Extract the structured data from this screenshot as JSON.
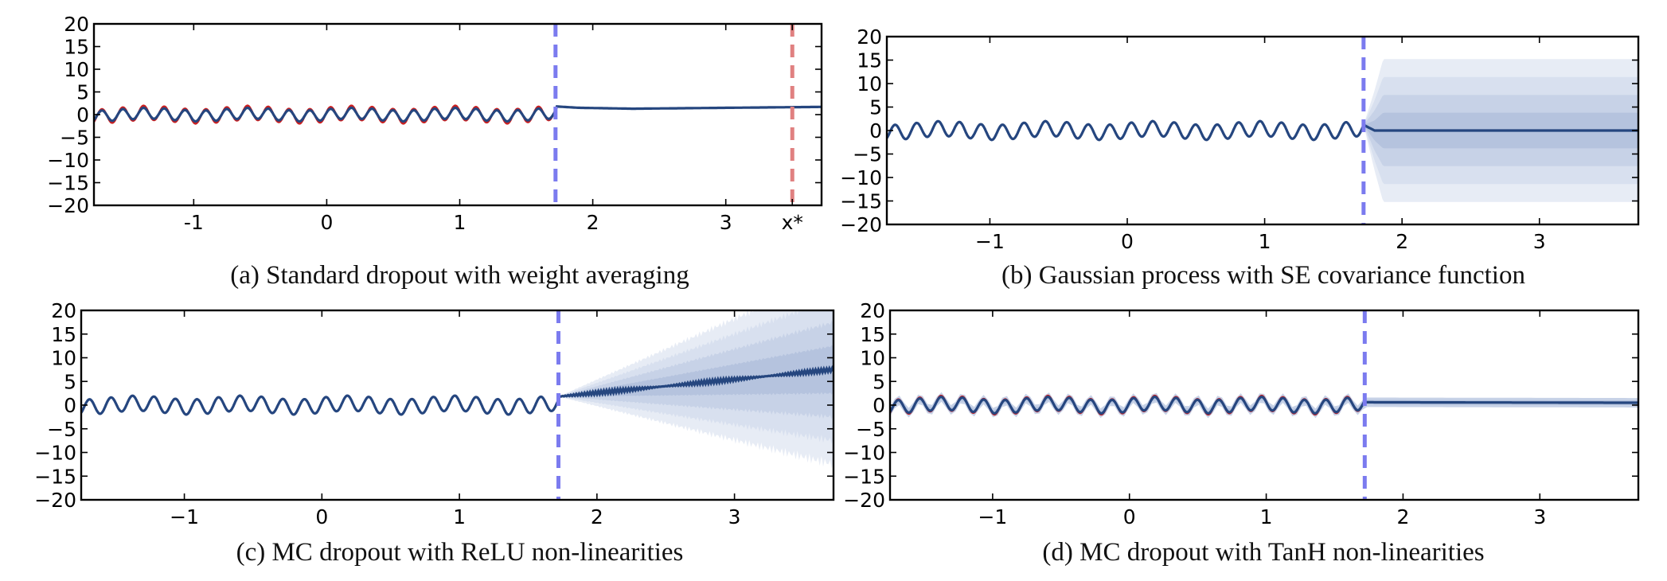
{
  "chart_data": [
    {
      "id": "a",
      "type": "line",
      "caption": "(a) Standard dropout with weight averaging",
      "xlim": [
        -1.75,
        3.72
      ],
      "ylim": [
        -20,
        20
      ],
      "xticks": [
        -1,
        0,
        1,
        2,
        3
      ],
      "xtick_labels": [
        "-1",
        "0",
        "1",
        "2",
        "3"
      ],
      "extra_xticks": [
        {
          "value": 3.5,
          "label": "x*"
        }
      ],
      "yticks": [
        20,
        15,
        10,
        5,
        0,
        -5,
        -10,
        -15,
        -20
      ],
      "ytick_labels": [
        "20",
        "15",
        "10",
        "5",
        "0",
        "−5",
        "−10",
        "−15",
        "−20"
      ],
      "vlines": [
        {
          "x": 1.72,
          "color": "#7b7bef"
        },
        {
          "x": 3.5,
          "color": "#e08080"
        }
      ],
      "observed": {
        "x_range": [
          -1.75,
          1.72
        ],
        "color": "#cc1f1f",
        "amplitude": 1.6
      },
      "prediction": {
        "color": "#25467f",
        "amplitude": 1.2,
        "extrapolation": [
          [
            1.72,
            1.8
          ],
          [
            1.9,
            1.5
          ],
          [
            2.3,
            1.3
          ],
          [
            3.0,
            1.5
          ],
          [
            3.72,
            1.7
          ]
        ]
      },
      "bands": []
    },
    {
      "id": "b",
      "type": "line",
      "caption": "(b) Gaussian process with SE covariance function",
      "xlim": [
        -1.75,
        3.72
      ],
      "ylim": [
        -20,
        20
      ],
      "xticks": [
        -1,
        0,
        1,
        2,
        3
      ],
      "xtick_labels": [
        "−1",
        "0",
        "1",
        "2",
        "3"
      ],
      "extra_xticks": [],
      "yticks": [
        20,
        15,
        10,
        5,
        0,
        -5,
        -10,
        -15,
        -20
      ],
      "ytick_labels": [
        "20",
        "15",
        "10",
        "5",
        "0",
        "−5",
        "−10",
        "−15",
        "−20"
      ],
      "vlines": [
        {
          "x": 1.72,
          "color": "#7b7bef"
        }
      ],
      "observed": {
        "x_range": [
          -1.75,
          1.72
        ],
        "color": "#cc1f1f",
        "amplitude": 1.6
      },
      "prediction": {
        "color": "#25467f",
        "amplitude": 1.6,
        "extrapolation": [
          [
            1.72,
            1.2
          ],
          [
            1.8,
            0.0
          ],
          [
            3.72,
            0.0
          ]
        ]
      },
      "bands": [
        {
          "level": 1,
          "start_x": 1.72,
          "end_x": 3.72,
          "half_width_start": 0,
          "half_width": 3.8
        },
        {
          "level": 2,
          "start_x": 1.72,
          "end_x": 3.72,
          "half_width_start": 0,
          "half_width": 7.6
        },
        {
          "level": 3,
          "start_x": 1.72,
          "end_x": 3.72,
          "half_width_start": 0,
          "half_width": 11.4
        },
        {
          "level": 4,
          "start_x": 1.72,
          "end_x": 3.72,
          "half_width_start": 0,
          "half_width": 15.2
        }
      ]
    },
    {
      "id": "c",
      "type": "line",
      "caption": "(c) MC dropout with ReLU non-linearities",
      "xlim": [
        -1.75,
        3.72
      ],
      "ylim": [
        -20,
        20
      ],
      "xticks": [
        -1,
        0,
        1,
        2,
        3
      ],
      "xtick_labels": [
        "−1",
        "0",
        "1",
        "2",
        "3"
      ],
      "extra_xticks": [],
      "yticks": [
        20,
        15,
        10,
        5,
        0,
        -5,
        -10,
        -15,
        -20
      ],
      "ytick_labels": [
        "20",
        "15",
        "10",
        "5",
        "0",
        "−5",
        "−10",
        "−15",
        "−20"
      ],
      "vlines": [
        {
          "x": 1.72,
          "color": "#7b7bef"
        }
      ],
      "observed": {
        "x_range": [
          -1.75,
          1.72
        ],
        "color": "#cc1f1f",
        "amplitude": 1.6
      },
      "prediction": {
        "color": "#25467f",
        "amplitude": 1.6,
        "extrapolation": [
          [
            1.72,
            1.8
          ],
          [
            2.5,
            4.0
          ],
          [
            3.72,
            7.5
          ]
        ]
      },
      "bands": [
        {
          "level": 1,
          "start_x": 1.72,
          "end_x": 3.72,
          "half_width_start": 0,
          "half_width": 5.0
        },
        {
          "level": 2,
          "start_x": 1.72,
          "end_x": 3.72,
          "half_width_start": 0,
          "half_width": 10.0
        },
        {
          "level": 3,
          "start_x": 1.72,
          "end_x": 3.72,
          "half_width_start": 0,
          "half_width": 15.0
        },
        {
          "level": 4,
          "start_x": 1.72,
          "end_x": 3.72,
          "half_width_start": 0,
          "half_width": 20.0
        }
      ]
    },
    {
      "id": "d",
      "type": "line",
      "caption": "(d) MC dropout with TanH non-linearities",
      "xlim": [
        -1.75,
        3.72
      ],
      "ylim": [
        -20,
        20
      ],
      "xticks": [
        -1,
        0,
        1,
        2,
        3
      ],
      "xtick_labels": [
        "−1",
        "0",
        "1",
        "2",
        "3"
      ],
      "extra_xticks": [],
      "yticks": [
        20,
        15,
        10,
        5,
        0,
        -5,
        -10,
        -15,
        -20
      ],
      "ytick_labels": [
        "20",
        "15",
        "10",
        "5",
        "0",
        "−5",
        "−10",
        "−15",
        "−20"
      ],
      "vlines": [
        {
          "x": 1.72,
          "color": "#7b7bef"
        }
      ],
      "observed": {
        "x_range": [
          -1.75,
          1.72
        ],
        "color": "#cc1f1f",
        "amplitude": 1.6
      },
      "prediction": {
        "color": "#25467f",
        "amplitude": 1.4,
        "extrapolation": [
          [
            1.72,
            0.6
          ],
          [
            3.72,
            0.5
          ]
        ]
      },
      "bands": [
        {
          "level": 1,
          "start_x": -1.75,
          "end_x": 3.72,
          "half_width_start": 0.5,
          "half_width": 0.5
        },
        {
          "level": 2,
          "start_x": -1.75,
          "end_x": 3.72,
          "half_width_start": 1.0,
          "half_width": 1.0
        }
      ]
    }
  ],
  "colors": {
    "band_levels": [
      "#b5c3de",
      "#c7d2e7",
      "#d8e0ef",
      "#e7ecf5"
    ],
    "axis": "#000000"
  }
}
